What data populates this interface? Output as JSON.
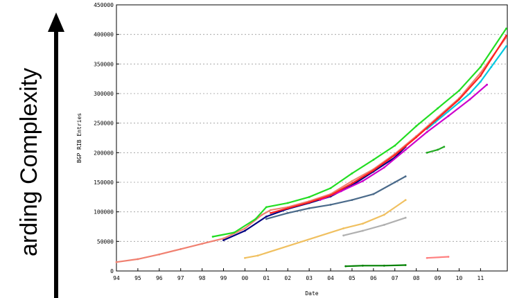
{
  "side_label": "arding Complexity",
  "chart_data": {
    "type": "scatter",
    "title": "",
    "xlabel": "Date",
    "ylabel": "BGP RIB Entries",
    "x_tick_labels": [
      "94",
      "95",
      "96",
      "97",
      "98",
      "99",
      "00",
      "01",
      "02",
      "03",
      "04",
      "05",
      "06",
      "07",
      "08",
      "09",
      "10",
      "11"
    ],
    "x_range": [
      1994.0,
      2012.25
    ],
    "y_ticks": [
      0,
      50000,
      100000,
      150000,
      200000,
      250000,
      300000,
      350000,
      400000,
      450000
    ],
    "ylim": [
      0,
      450000
    ],
    "grid": true,
    "series": [
      {
        "color": "#f08070",
        "points": [
          [
            1994.0,
            15000
          ],
          [
            1995.0,
            20000
          ],
          [
            1996.0,
            28000
          ],
          [
            1997.0,
            37000
          ],
          [
            1998.0,
            46000
          ],
          [
            1999.0,
            55000
          ],
          [
            2000.0,
            72000
          ],
          [
            2000.8,
            95000
          ],
          [
            2001.2,
            103000
          ],
          [
            2002.0,
            108000
          ],
          [
            2003.0,
            118000
          ],
          [
            2004.0,
            130000
          ],
          [
            2005.0,
            152000
          ],
          [
            2006.0,
            172000
          ],
          [
            2007.0,
            198000
          ],
          [
            2008.0,
            228000
          ],
          [
            2009.0,
            260000
          ],
          [
            2010.0,
            292000
          ],
          [
            2011.0,
            335000
          ],
          [
            2012.2,
            395000
          ]
        ]
      },
      {
        "color": "#22dd22",
        "points": [
          [
            1998.5,
            58000
          ],
          [
            1999.5,
            65000
          ],
          [
            2000.5,
            88000
          ],
          [
            2001.0,
            108000
          ],
          [
            2002.0,
            115000
          ],
          [
            2003.0,
            125000
          ],
          [
            2004.0,
            140000
          ],
          [
            2005.0,
            165000
          ],
          [
            2006.0,
            188000
          ],
          [
            2007.0,
            212000
          ],
          [
            2008.0,
            245000
          ],
          [
            2009.0,
            275000
          ],
          [
            2010.0,
            305000
          ],
          [
            2011.0,
            345000
          ],
          [
            2012.2,
            410000
          ]
        ]
      },
      {
        "color": "#000080",
        "points": [
          [
            1999.0,
            52000
          ],
          [
            2000.0,
            68000
          ],
          [
            2001.0,
            92000
          ],
          [
            2002.0,
            105000
          ],
          [
            2003.0,
            115000
          ],
          [
            2004.0,
            126000
          ],
          [
            2005.0,
            145000
          ],
          [
            2006.0,
            168000
          ],
          [
            2007.0,
            192000
          ],
          [
            2007.5,
            210000
          ]
        ]
      },
      {
        "color": "#cc00cc",
        "points": [
          [
            2003.5,
            120000
          ],
          [
            2004.5,
            135000
          ],
          [
            2005.5,
            152000
          ],
          [
            2006.5,
            175000
          ],
          [
            2007.5,
            205000
          ],
          [
            2008.5,
            235000
          ],
          [
            2009.5,
            262000
          ],
          [
            2010.5,
            290000
          ],
          [
            2011.3,
            315000
          ]
        ]
      },
      {
        "color": "#00c8e0",
        "points": [
          [
            2008.5,
            240000
          ],
          [
            2009.5,
            270000
          ],
          [
            2010.0,
            285000
          ],
          [
            2010.5,
            300000
          ],
          [
            2011.0,
            320000
          ],
          [
            2011.5,
            345000
          ],
          [
            2012.2,
            380000
          ]
        ]
      },
      {
        "color": "#ff2020",
        "points": [
          [
            2001.2,
            98000
          ],
          [
            2002.0,
            106000
          ],
          [
            2003.0,
            116000
          ],
          [
            2004.0,
            128000
          ],
          [
            2005.0,
            148000
          ],
          [
            2006.0,
            170000
          ],
          [
            2007.0,
            196000
          ],
          [
            2008.0,
            226000
          ],
          [
            2009.0,
            258000
          ],
          [
            2010.0,
            290000
          ],
          [
            2011.0,
            330000
          ],
          [
            2012.2,
            398000
          ]
        ]
      },
      {
        "color": "#4a6a8a",
        "points": [
          [
            2001.0,
            88000
          ],
          [
            2002.0,
            98000
          ],
          [
            2003.0,
            106000
          ],
          [
            2004.0,
            112000
          ],
          [
            2005.0,
            120000
          ],
          [
            2006.0,
            130000
          ],
          [
            2007.0,
            150000
          ],
          [
            2007.5,
            160000
          ]
        ]
      },
      {
        "color": "#f0c060",
        "points": [
          [
            2000.0,
            22000
          ],
          [
            2000.6,
            26000
          ],
          [
            2004.6,
            72000
          ],
          [
            2005.5,
            80000
          ],
          [
            2006.5,
            95000
          ],
          [
            2007.5,
            120000
          ]
        ]
      },
      {
        "color": "#b0b0b0",
        "points": [
          [
            2004.6,
            60000
          ],
          [
            2005.5,
            68000
          ],
          [
            2006.5,
            78000
          ],
          [
            2007.5,
            90000
          ]
        ]
      },
      {
        "color": "#008000",
        "points": [
          [
            2004.7,
            8000
          ],
          [
            2005.5,
            9000
          ],
          [
            2006.5,
            9000
          ],
          [
            2007.5,
            10000
          ]
        ]
      },
      {
        "color": "#ff8080",
        "points": [
          [
            2008.5,
            22000
          ],
          [
            2009.5,
            24000
          ]
        ]
      },
      {
        "color": "#22aa22",
        "points": [
          [
            2008.5,
            200000
          ],
          [
            2009.0,
            205000
          ],
          [
            2009.3,
            210000
          ]
        ]
      }
    ]
  }
}
